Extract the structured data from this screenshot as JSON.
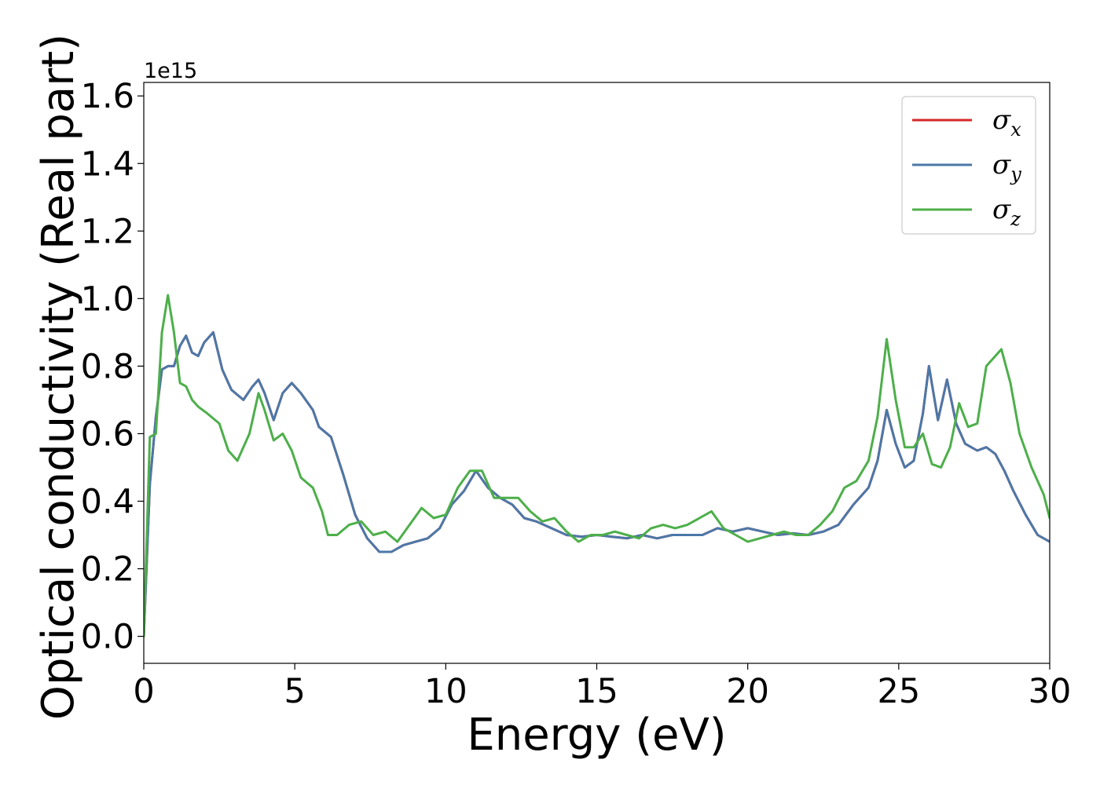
{
  "chart_data": {
    "type": "line",
    "xlabel": "Energy (eV)",
    "ylabel": "Optical conductivity (Real part)",
    "offset_text": "1e15",
    "xlim": [
      0,
      30
    ],
    "ylim": [
      -0.08,
      1.64
    ],
    "y_scale": 1000000000000000.0,
    "xticks": [
      0,
      5,
      10,
      15,
      20,
      25,
      30
    ],
    "xtick_labels": [
      "0",
      "5",
      "10",
      "15",
      "20",
      "25",
      "30"
    ],
    "yticks": [
      0.0,
      0.2,
      0.4,
      0.6,
      0.8,
      1.0,
      1.2,
      1.4,
      1.6
    ],
    "ytick_labels": [
      "0.0",
      "0.2",
      "0.4",
      "0.6",
      "0.8",
      "1.0",
      "1.2",
      "1.4",
      "1.6"
    ],
    "grid": false,
    "legend_position": "top-right",
    "series": [
      {
        "name": "σ_x",
        "label_main": "σ",
        "label_sub": "x",
        "color": "#d62728",
        "x": [
          0,
          0.2,
          0.4,
          0.6,
          0.8,
          1.0,
          1.2,
          1.4,
          1.6,
          1.8,
          2.0,
          2.3,
          2.6,
          2.9,
          3.3,
          3.6,
          3.8,
          4.0,
          4.3,
          4.6,
          4.9,
          5.2,
          5.6,
          5.8,
          6.2,
          6.6,
          7.0,
          7.4,
          7.8,
          8.2,
          8.6,
          9.0,
          9.4,
          9.8,
          10.2,
          10.6,
          11.0,
          11.4,
          11.8,
          12.2,
          12.6,
          13.0,
          13.5,
          14.0,
          14.5,
          15.0,
          15.5,
          16.0,
          16.5,
          17.0,
          17.5,
          18.0,
          18.5,
          19.0,
          19.5,
          20.0,
          20.5,
          21.0,
          21.5,
          22.0,
          22.5,
          23.0,
          23.5,
          24.0,
          24.3,
          24.6,
          24.9,
          25.2,
          25.5,
          25.8,
          26.0,
          26.3,
          26.6,
          26.9,
          27.2,
          27.6,
          27.9,
          28.2,
          28.5,
          28.8,
          29.2,
          29.6,
          30.0
        ],
        "y": [
          0.0,
          0.45,
          0.65,
          0.79,
          0.8,
          0.8,
          0.86,
          0.89,
          0.84,
          0.83,
          0.87,
          0.9,
          0.79,
          0.73,
          0.7,
          0.74,
          0.76,
          0.72,
          0.64,
          0.72,
          0.75,
          0.72,
          0.67,
          0.62,
          0.59,
          0.48,
          0.36,
          0.29,
          0.25,
          0.25,
          0.27,
          0.28,
          0.29,
          0.32,
          0.39,
          0.43,
          0.49,
          0.44,
          0.41,
          0.39,
          0.35,
          0.34,
          0.32,
          0.3,
          0.295,
          0.3,
          0.295,
          0.29,
          0.3,
          0.29,
          0.3,
          0.3,
          0.3,
          0.32,
          0.31,
          0.32,
          0.31,
          0.3,
          0.305,
          0.3,
          0.31,
          0.33,
          0.39,
          0.44,
          0.52,
          0.67,
          0.57,
          0.5,
          0.52,
          0.66,
          0.8,
          0.64,
          0.76,
          0.63,
          0.57,
          0.55,
          0.56,
          0.54,
          0.49,
          0.43,
          0.36,
          0.3,
          0.28
        ]
      },
      {
        "name": "σ_y",
        "label_main": "σ",
        "label_sub": "y",
        "color": "#4c78a8",
        "x": [
          0,
          0.2,
          0.4,
          0.6,
          0.8,
          1.0,
          1.2,
          1.4,
          1.6,
          1.8,
          2.0,
          2.3,
          2.6,
          2.9,
          3.3,
          3.6,
          3.8,
          4.0,
          4.3,
          4.6,
          4.9,
          5.2,
          5.6,
          5.8,
          6.2,
          6.6,
          7.0,
          7.4,
          7.8,
          8.2,
          8.6,
          9.0,
          9.4,
          9.8,
          10.2,
          10.6,
          11.0,
          11.4,
          11.8,
          12.2,
          12.6,
          13.0,
          13.5,
          14.0,
          14.5,
          15.0,
          15.5,
          16.0,
          16.5,
          17.0,
          17.5,
          18.0,
          18.5,
          19.0,
          19.5,
          20.0,
          20.5,
          21.0,
          21.5,
          22.0,
          22.5,
          23.0,
          23.5,
          24.0,
          24.3,
          24.6,
          24.9,
          25.2,
          25.5,
          25.8,
          26.0,
          26.3,
          26.6,
          26.9,
          27.2,
          27.6,
          27.9,
          28.2,
          28.5,
          28.8,
          29.2,
          29.6,
          30.0
        ],
        "y": [
          0.0,
          0.45,
          0.65,
          0.79,
          0.8,
          0.8,
          0.86,
          0.89,
          0.84,
          0.83,
          0.87,
          0.9,
          0.79,
          0.73,
          0.7,
          0.74,
          0.76,
          0.72,
          0.64,
          0.72,
          0.75,
          0.72,
          0.67,
          0.62,
          0.59,
          0.48,
          0.36,
          0.29,
          0.25,
          0.25,
          0.27,
          0.28,
          0.29,
          0.32,
          0.39,
          0.43,
          0.49,
          0.44,
          0.41,
          0.39,
          0.35,
          0.34,
          0.32,
          0.3,
          0.295,
          0.3,
          0.295,
          0.29,
          0.3,
          0.29,
          0.3,
          0.3,
          0.3,
          0.32,
          0.31,
          0.32,
          0.31,
          0.3,
          0.305,
          0.3,
          0.31,
          0.33,
          0.39,
          0.44,
          0.52,
          0.67,
          0.57,
          0.5,
          0.52,
          0.66,
          0.8,
          0.64,
          0.76,
          0.63,
          0.57,
          0.55,
          0.56,
          0.54,
          0.49,
          0.43,
          0.36,
          0.3,
          0.28
        ]
      },
      {
        "name": "σ_z",
        "label_main": "σ",
        "label_sub": "z",
        "color": "#4daf4a",
        "x": [
          0,
          0.2,
          0.4,
          0.6,
          0.8,
          1.0,
          1.2,
          1.4,
          1.6,
          1.8,
          2.1,
          2.5,
          2.8,
          3.1,
          3.5,
          3.8,
          4.0,
          4.3,
          4.6,
          4.9,
          5.2,
          5.6,
          5.9,
          6.1,
          6.4,
          6.8,
          7.2,
          7.6,
          8.0,
          8.4,
          8.8,
          9.2,
          9.6,
          10.0,
          10.4,
          10.8,
          11.2,
          11.6,
          12.0,
          12.4,
          12.8,
          13.2,
          13.6,
          14.0,
          14.4,
          14.8,
          15.2,
          15.6,
          16.0,
          16.4,
          16.8,
          17.2,
          17.6,
          18.0,
          18.4,
          18.8,
          19.2,
          19.6,
          20.0,
          20.4,
          20.8,
          21.2,
          21.6,
          22.0,
          22.4,
          22.8,
          23.2,
          23.6,
          24.0,
          24.3,
          24.6,
          24.9,
          25.2,
          25.5,
          25.8,
          26.1,
          26.4,
          26.7,
          27.0,
          27.3,
          27.6,
          27.9,
          28.2,
          28.4,
          28.7,
          29.0,
          29.4,
          29.8,
          30.0
        ],
        "y": [
          0.0,
          0.59,
          0.6,
          0.9,
          1.01,
          0.9,
          0.75,
          0.74,
          0.7,
          0.68,
          0.66,
          0.63,
          0.55,
          0.52,
          0.6,
          0.72,
          0.67,
          0.58,
          0.6,
          0.55,
          0.47,
          0.44,
          0.37,
          0.3,
          0.3,
          0.33,
          0.34,
          0.3,
          0.31,
          0.28,
          0.33,
          0.38,
          0.35,
          0.36,
          0.44,
          0.49,
          0.49,
          0.41,
          0.41,
          0.41,
          0.37,
          0.34,
          0.35,
          0.31,
          0.28,
          0.3,
          0.3,
          0.31,
          0.3,
          0.29,
          0.32,
          0.33,
          0.32,
          0.33,
          0.35,
          0.37,
          0.32,
          0.3,
          0.28,
          0.29,
          0.3,
          0.31,
          0.3,
          0.3,
          0.33,
          0.37,
          0.44,
          0.46,
          0.52,
          0.65,
          0.88,
          0.7,
          0.56,
          0.56,
          0.6,
          0.51,
          0.5,
          0.56,
          0.69,
          0.62,
          0.63,
          0.8,
          0.83,
          0.85,
          0.75,
          0.6,
          0.5,
          0.42,
          0.35
        ]
      }
    ]
  }
}
